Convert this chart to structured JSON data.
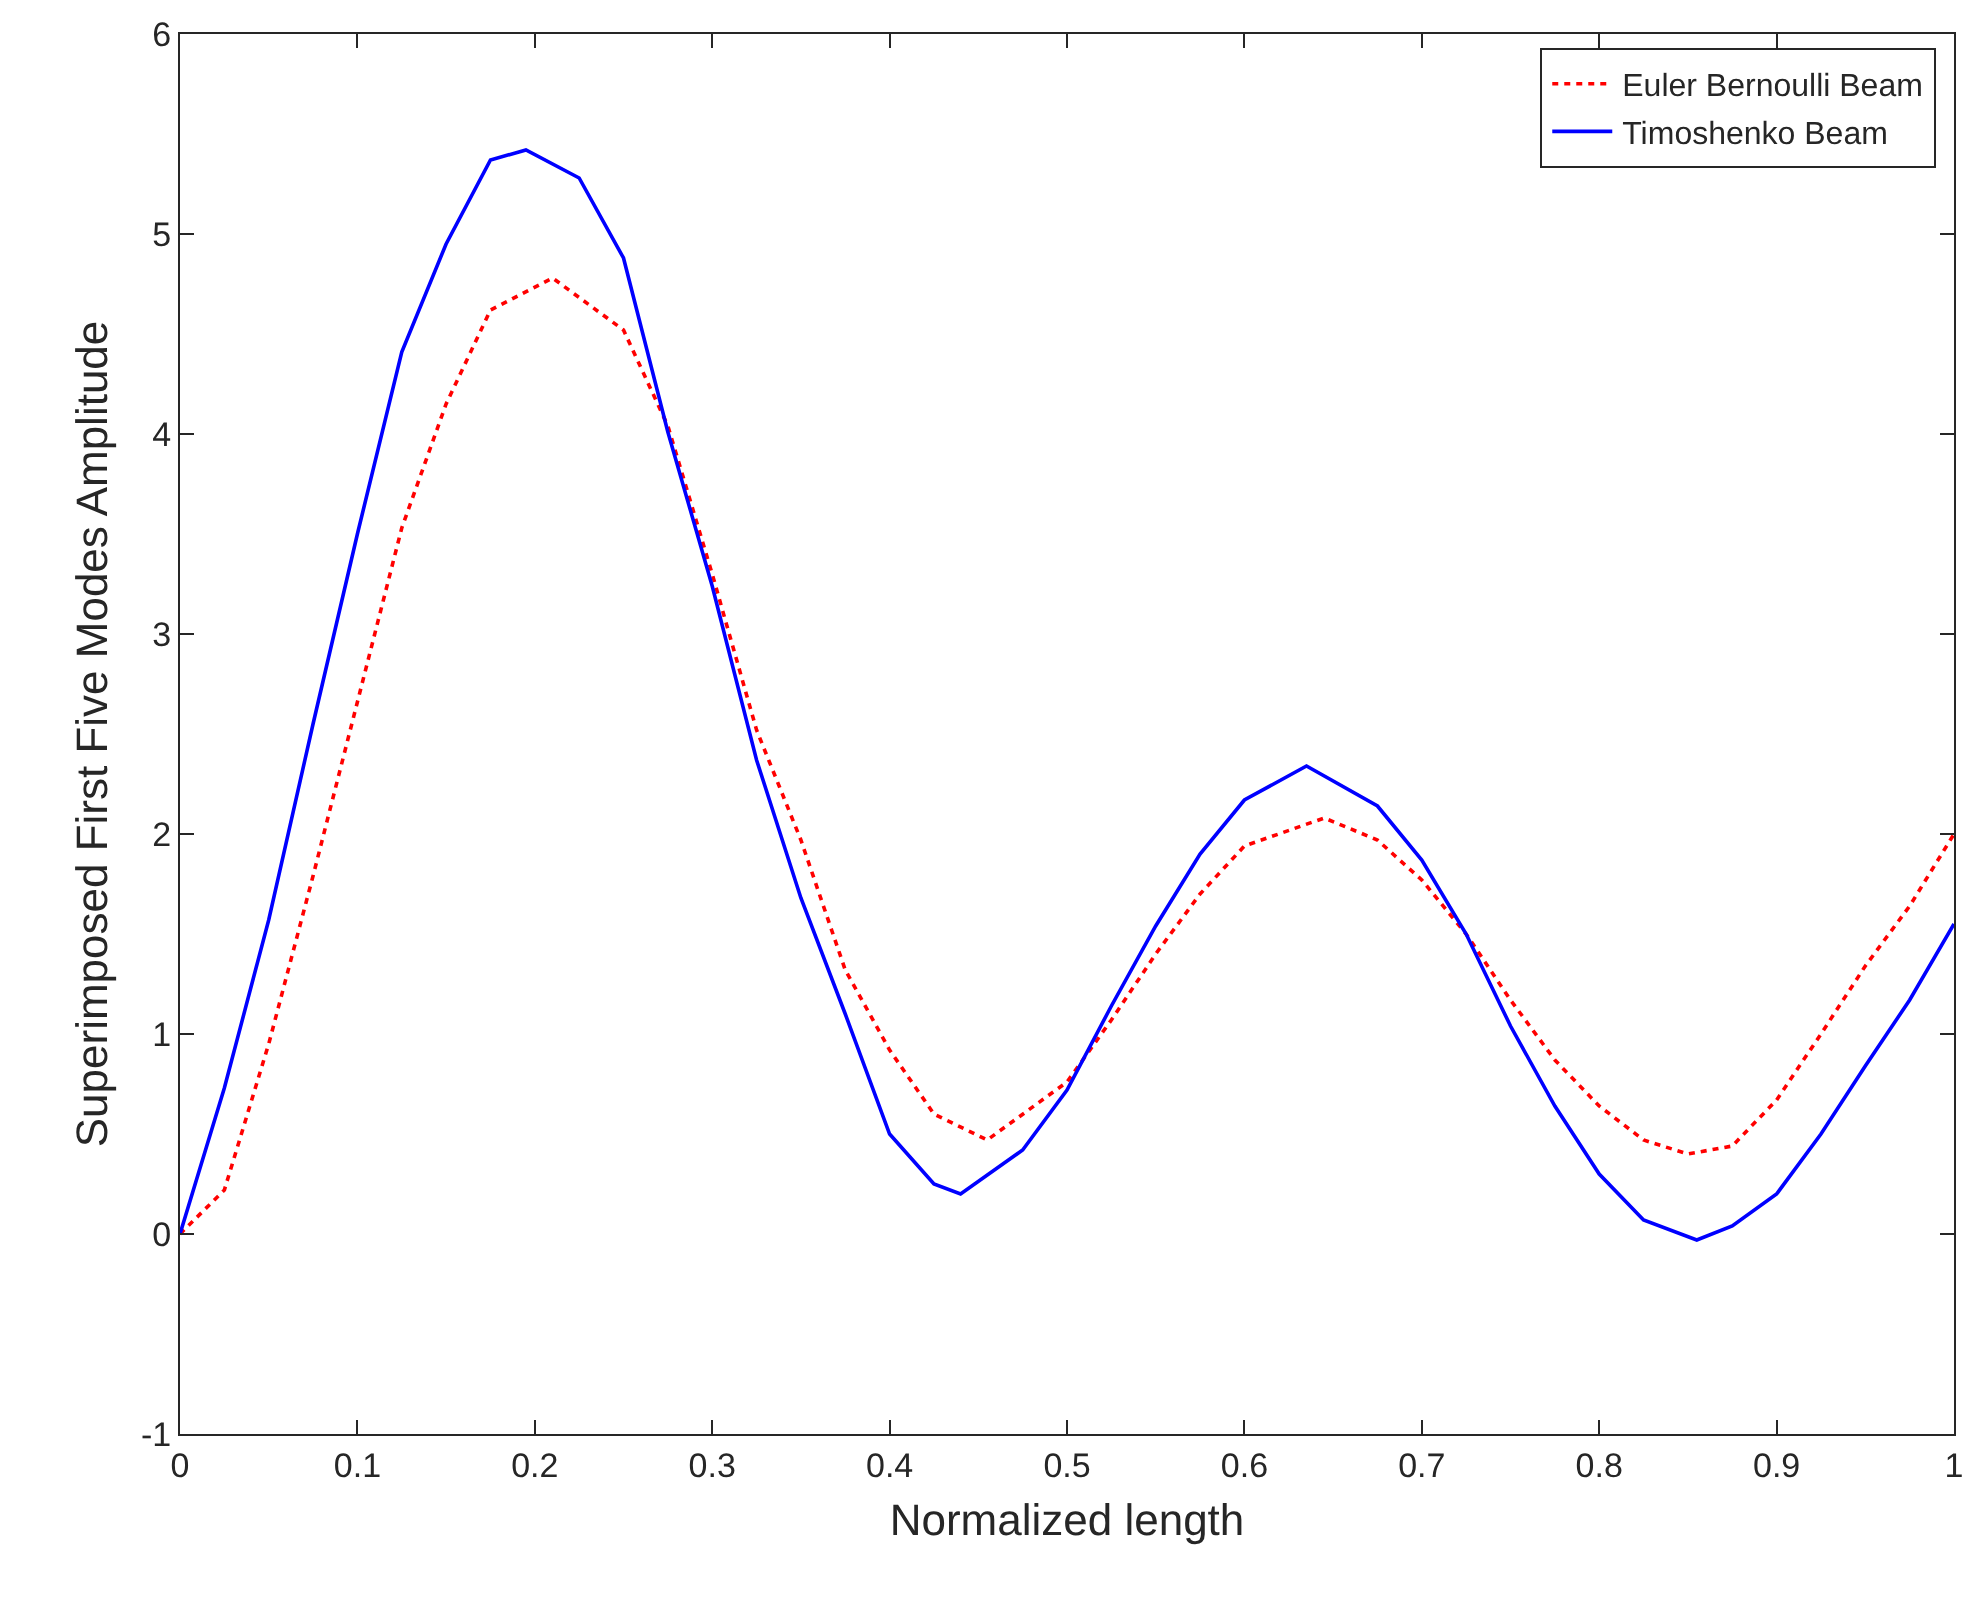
{
  "chart_data": {
    "type": "line",
    "xlabel": "Normalized length",
    "ylabel": "Superimposed First Five Modes Amplitude",
    "xlim": [
      0,
      1
    ],
    "xticks": [
      0,
      0.1,
      0.2,
      0.3,
      0.4,
      0.5,
      0.6,
      0.7,
      0.8,
      0.9,
      1
    ],
    "ylim": [
      -1,
      6
    ],
    "yticks": [
      -1,
      0,
      1,
      2,
      3,
      4,
      5,
      6
    ],
    "grid": false,
    "legend": "top right",
    "marker": "none",
    "series": [
      {
        "name": "Euler Bernoulli Beam",
        "color": "#ff0000",
        "line_style": "dotted",
        "x": [
          0,
          0.025,
          0.05,
          0.075,
          0.1,
          0.125,
          0.15,
          0.175,
          0.21,
          0.25,
          0.275,
          0.3,
          0.325,
          0.35,
          0.375,
          0.4,
          0.425,
          0.455,
          0.5,
          0.525,
          0.55,
          0.575,
          0.6,
          0.645,
          0.675,
          0.7,
          0.725,
          0.75,
          0.775,
          0.8,
          0.825,
          0.85,
          0.875,
          0.9,
          0.925,
          0.95,
          0.975,
          1
        ],
        "values": [
          0,
          0.22,
          0.95,
          1.79,
          2.66,
          3.53,
          4.15,
          4.62,
          4.78,
          4.52,
          4.04,
          3.3,
          2.52,
          1.97,
          1.32,
          0.92,
          0.6,
          0.47,
          0.76,
          1.07,
          1.4,
          1.7,
          1.94,
          2.08,
          1.97,
          1.77,
          1.5,
          1.17,
          0.87,
          0.64,
          0.47,
          0.4,
          0.44,
          0.67,
          1.0,
          1.34,
          1.64,
          2.0
        ]
      },
      {
        "name": "Timoshenko Beam",
        "color": "#0000ff",
        "line_style": "solid",
        "x": [
          0,
          0.025,
          0.05,
          0.075,
          0.1,
          0.125,
          0.15,
          0.175,
          0.195,
          0.225,
          0.25,
          0.275,
          0.3,
          0.325,
          0.35,
          0.375,
          0.4,
          0.425,
          0.44,
          0.475,
          0.5,
          0.525,
          0.55,
          0.575,
          0.6,
          0.635,
          0.675,
          0.7,
          0.725,
          0.75,
          0.775,
          0.8,
          0.825,
          0.855,
          0.875,
          0.9,
          0.925,
          0.95,
          0.975,
          1
        ],
        "values": [
          0,
          0.73,
          1.57,
          2.55,
          3.5,
          4.41,
          4.95,
          5.37,
          5.42,
          5.28,
          4.88,
          4.01,
          3.24,
          2.37,
          1.68,
          1.1,
          0.5,
          0.25,
          0.2,
          0.42,
          0.72,
          1.14,
          1.54,
          1.9,
          2.17,
          2.34,
          2.14,
          1.87,
          1.5,
          1.04,
          0.64,
          0.3,
          0.07,
          -0.03,
          0.04,
          0.2,
          0.5,
          0.84,
          1.17,
          1.55
        ]
      }
    ]
  }
}
